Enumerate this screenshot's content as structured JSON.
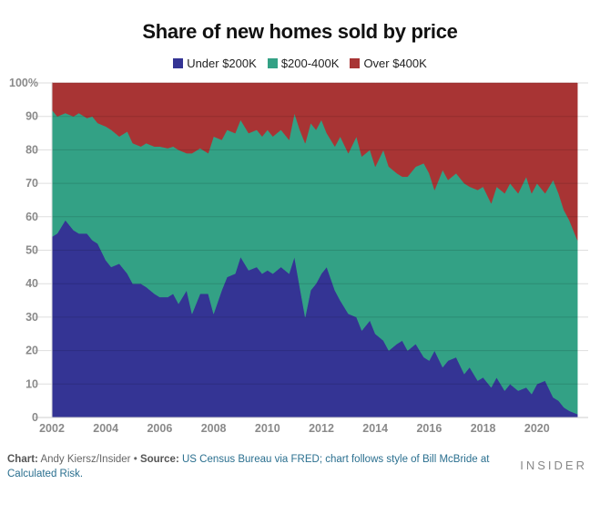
{
  "chart_data": {
    "type": "area",
    "stacked": true,
    "title": "Share of new homes sold by price",
    "xlabel": "",
    "ylabel": "",
    "xlim": [
      2002,
      2021.5
    ],
    "ylim": [
      0,
      100
    ],
    "x_ticks": [
      "2002",
      "2004",
      "2006",
      "2008",
      "2010",
      "2012",
      "2014",
      "2016",
      "2018",
      "2020"
    ],
    "x_tick_values": [
      2002,
      2004,
      2006,
      2008,
      2010,
      2012,
      2014,
      2016,
      2018,
      2020
    ],
    "y_ticks": [
      "0",
      "10",
      "20",
      "30",
      "40",
      "50",
      "60",
      "70",
      "80",
      "90",
      "100%"
    ],
    "y_tick_values": [
      0,
      10,
      20,
      30,
      40,
      50,
      60,
      70,
      80,
      90,
      100
    ],
    "grid": true,
    "legend_position": "top-center",
    "x": [
      2002.0,
      2002.2,
      2002.5,
      2002.8,
      2003.0,
      2003.3,
      2003.5,
      2003.7,
      2004.0,
      2004.2,
      2004.5,
      2004.8,
      2005.0,
      2005.3,
      2005.5,
      2005.8,
      2006.0,
      2006.3,
      2006.5,
      2006.7,
      2007.0,
      2007.2,
      2007.5,
      2007.8,
      2008.0,
      2008.3,
      2008.5,
      2008.8,
      2009.0,
      2009.3,
      2009.6,
      2009.8,
      2010.0,
      2010.2,
      2010.5,
      2010.8,
      2011.0,
      2011.2,
      2011.4,
      2011.6,
      2011.8,
      2012.0,
      2012.2,
      2012.5,
      2012.7,
      2013.0,
      2013.3,
      2013.5,
      2013.8,
      2014.0,
      2014.3,
      2014.5,
      2014.8,
      2015.0,
      2015.2,
      2015.5,
      2015.8,
      2016.0,
      2016.2,
      2016.5,
      2016.7,
      2017.0,
      2017.3,
      2017.5,
      2017.8,
      2018.0,
      2018.3,
      2018.5,
      2018.8,
      2019.0,
      2019.3,
      2019.6,
      2019.8,
      2020.0,
      2020.3,
      2020.6,
      2020.8,
      2021.0,
      2021.2,
      2021.5
    ],
    "series": [
      {
        "name": "Under $200K",
        "color": "#343494",
        "values": [
          54,
          55,
          59,
          56,
          55,
          55,
          53,
          52,
          47,
          45,
          46,
          43,
          40,
          40,
          39,
          37,
          36,
          36,
          37,
          34,
          38,
          31,
          37,
          37,
          31,
          38,
          42,
          43,
          48,
          44,
          45,
          43,
          44,
          43,
          45,
          43,
          48,
          39,
          30,
          38,
          40,
          43,
          45,
          38,
          35,
          31,
          30,
          26,
          29,
          25,
          23,
          20,
          22,
          23,
          20,
          22,
          18,
          17,
          20,
          15,
          17,
          18,
          13,
          15,
          11,
          12,
          9,
          12,
          8,
          10,
          8,
          9,
          7,
          10,
          11,
          6,
          5,
          3,
          2,
          1
        ]
      },
      {
        "name": "$200-400K",
        "color": "#33a185",
        "values": [
          38,
          35,
          32,
          34,
          36,
          34.5,
          37,
          36,
          40,
          41,
          38,
          42.5,
          42,
          41,
          43,
          44,
          45,
          44.5,
          44,
          46,
          41,
          48,
          43.5,
          42,
          53,
          45,
          44,
          42,
          41,
          41,
          41,
          41,
          42,
          41,
          41,
          40,
          43,
          47,
          52,
          50,
          46,
          46,
          40,
          43,
          49,
          48,
          54,
          52,
          51,
          50,
          57,
          55,
          51,
          49,
          52,
          53,
          58,
          56,
          48,
          59,
          54,
          55,
          57,
          54,
          57,
          57,
          55,
          57,
          59,
          60,
          59,
          63,
          60,
          60,
          56,
          65,
          62,
          59,
          57,
          52
        ]
      },
      {
        "name": "Over $400K",
        "color": "#a83434",
        "values": [
          8,
          10,
          9,
          10,
          9,
          10.5,
          10,
          12,
          13,
          14,
          16,
          14.5,
          18,
          19,
          18,
          19,
          19,
          19.5,
          19,
          20,
          21,
          21,
          19.5,
          21,
          16,
          17,
          14,
          15,
          11,
          15,
          14,
          16,
          14,
          16,
          14,
          17,
          9,
          14,
          18,
          12,
          14,
          11,
          15,
          19,
          16,
          21,
          16,
          22,
          20,
          25,
          20,
          25,
          27,
          28,
          28,
          25,
          24,
          27,
          32,
          26,
          29,
          27,
          30,
          31,
          32,
          31,
          36,
          31,
          33,
          30,
          33,
          28,
          33,
          30,
          33,
          29,
          33,
          38,
          41,
          47
        ]
      }
    ]
  },
  "legend": {
    "items": [
      {
        "label": "Under $200K",
        "color": "#343494"
      },
      {
        "label": "$200-400K",
        "color": "#33a185"
      },
      {
        "label": "Over $400K",
        "color": "#a83434"
      }
    ]
  },
  "footer": {
    "chart_label": "Chart:",
    "chart_author": "Andy Kiersz/Insider",
    "bullet": "•",
    "source_label": "Source:",
    "source_text": "US Census Bureau via FRED; chart follows style of Bill McBride at Calculated Risk."
  },
  "brand": "INSIDER"
}
